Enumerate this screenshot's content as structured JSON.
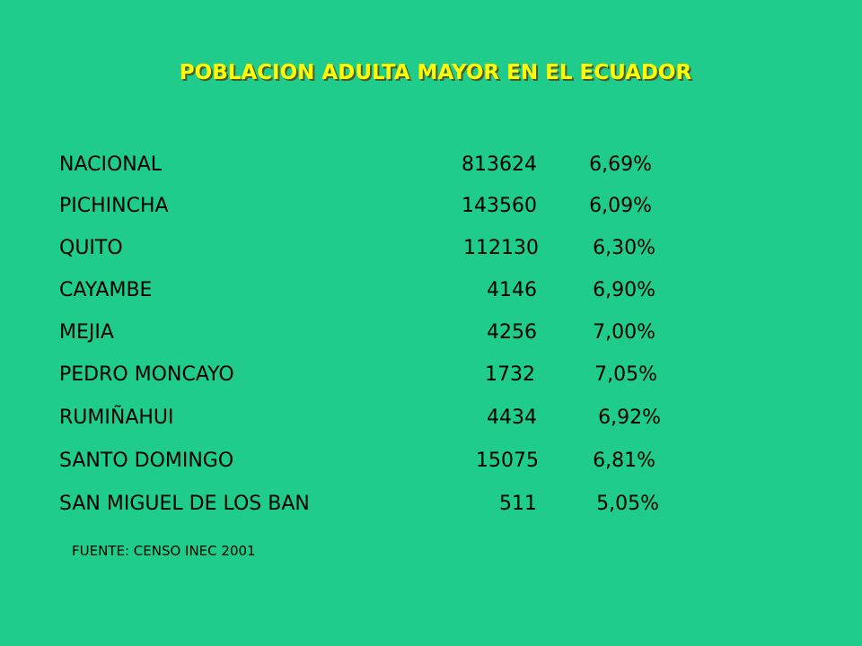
{
  "title": "POBLACION ADULTA MAYOR EN EL ECUADOR",
  "rows": [
    {
      "name": "NACIONAL",
      "value": "813624",
      "percent": "6,69%"
    },
    {
      "name": "PICHINCHA",
      "value": "143560",
      "percent": "6,09%"
    },
    {
      "name": "QUITO",
      "value": "112130",
      "percent": "6,30%"
    },
    {
      "name": "CAYAMBE",
      "value": "4146",
      "percent": "6,90%"
    },
    {
      "name": "MEJIA",
      "value": "4256",
      "percent": "7,00%"
    },
    {
      "name": "PEDRO MONCAYO",
      "value": "1732",
      "percent": "7,05%"
    },
    {
      "name": "RUMIÑAHUI",
      "value": "4434",
      "percent": "6,92%"
    },
    {
      "name": "SANTO DOMINGO",
      "value": "15075",
      "percent": "6,81%"
    },
    {
      "name": "SAN MIGUEL DE LOS BAN",
      "value": "511",
      "percent": "5,05%"
    }
  ],
  "source": "FUENTE: CENSO INEC 2001"
}
